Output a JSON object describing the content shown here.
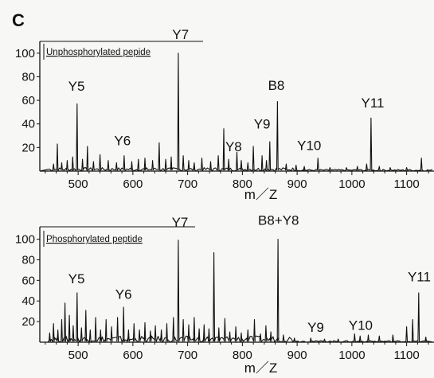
{
  "panel_letter": "C",
  "chart_data": [
    {
      "type": "line",
      "legend": "Unphosphorylated pepide",
      "xlabel": "m／Z",
      "ylabel": "",
      "xlim": [
        430,
        1150
      ],
      "ylim": [
        0,
        110
      ],
      "x_ticks": [
        500,
        600,
        700,
        800,
        900,
        1000,
        1100
      ],
      "y_ticks": [
        20,
        40,
        60,
        80,
        100
      ],
      "grid": false,
      "peaks": [
        {
          "x": 455,
          "y": 6
        },
        {
          "x": 462,
          "y": 23
        },
        {
          "x": 470,
          "y": 7
        },
        {
          "x": 480,
          "y": 9
        },
        {
          "x": 490,
          "y": 12
        },
        {
          "x": 498,
          "y": 57
        },
        {
          "x": 508,
          "y": 10
        },
        {
          "x": 517,
          "y": 21
        },
        {
          "x": 528,
          "y": 8
        },
        {
          "x": 540,
          "y": 14
        },
        {
          "x": 555,
          "y": 9
        },
        {
          "x": 570,
          "y": 7
        },
        {
          "x": 584,
          "y": 13
        },
        {
          "x": 598,
          "y": 8
        },
        {
          "x": 610,
          "y": 10
        },
        {
          "x": 622,
          "y": 11
        },
        {
          "x": 636,
          "y": 9
        },
        {
          "x": 648,
          "y": 24
        },
        {
          "x": 660,
          "y": 10
        },
        {
          "x": 670,
          "y": 12
        },
        {
          "x": 683,
          "y": 100
        },
        {
          "x": 692,
          "y": 13
        },
        {
          "x": 702,
          "y": 9
        },
        {
          "x": 712,
          "y": 7
        },
        {
          "x": 726,
          "y": 11
        },
        {
          "x": 742,
          "y": 8
        },
        {
          "x": 756,
          "y": 13
        },
        {
          "x": 766,
          "y": 36
        },
        {
          "x": 775,
          "y": 10
        },
        {
          "x": 790,
          "y": 16
        },
        {
          "x": 798,
          "y": 9
        },
        {
          "x": 810,
          "y": 7
        },
        {
          "x": 820,
          "y": 21
        },
        {
          "x": 836,
          "y": 13
        },
        {
          "x": 844,
          "y": 9
        },
        {
          "x": 850,
          "y": 25
        },
        {
          "x": 864,
          "y": 59
        },
        {
          "x": 880,
          "y": 6
        },
        {
          "x": 898,
          "y": 5
        },
        {
          "x": 913,
          "y": 4
        },
        {
          "x": 938,
          "y": 11
        },
        {
          "x": 960,
          "y": 3
        },
        {
          "x": 990,
          "y": 3
        },
        {
          "x": 1010,
          "y": 4
        },
        {
          "x": 1027,
          "y": 6
        },
        {
          "x": 1035,
          "y": 45
        },
        {
          "x": 1050,
          "y": 4
        },
        {
          "x": 1070,
          "y": 3
        },
        {
          "x": 1100,
          "y": 3
        },
        {
          "x": 1127,
          "y": 11
        }
      ],
      "annotations": [
        {
          "text": "Y5",
          "x": 497,
          "y": 68
        },
        {
          "text": "Y6",
          "x": 581,
          "y": 22
        },
        {
          "text": "Y7",
          "x": 687,
          "y": 112
        },
        {
          "text": "Y8",
          "x": 784,
          "y": 17
        },
        {
          "text": "Y9",
          "x": 836,
          "y": 36
        },
        {
          "text": "B8",
          "x": 862,
          "y": 69
        },
        {
          "text": "Y10",
          "x": 922,
          "y": 18
        },
        {
          "text": "Y11",
          "x": 1038,
          "y": 54
        }
      ]
    },
    {
      "type": "line",
      "legend": "Phosphorylated  peptide",
      "xlabel": "m／Z",
      "ylabel": "",
      "xlim": [
        430,
        1150
      ],
      "ylim": [
        0,
        112
      ],
      "x_ticks": [
        500,
        600,
        700,
        800,
        900,
        1000,
        1100
      ],
      "y_ticks": [
        20,
        40,
        60,
        80,
        100
      ],
      "grid": false,
      "peaks": [
        {
          "x": 448,
          "y": 9
        },
        {
          "x": 455,
          "y": 18
        },
        {
          "x": 463,
          "y": 12
        },
        {
          "x": 470,
          "y": 22
        },
        {
          "x": 476,
          "y": 38
        },
        {
          "x": 484,
          "y": 26
        },
        {
          "x": 491,
          "y": 16
        },
        {
          "x": 498,
          "y": 48
        },
        {
          "x": 506,
          "y": 14
        },
        {
          "x": 514,
          "y": 31
        },
        {
          "x": 522,
          "y": 12
        },
        {
          "x": 532,
          "y": 24
        },
        {
          "x": 541,
          "y": 12
        },
        {
          "x": 551,
          "y": 22
        },
        {
          "x": 561,
          "y": 15
        },
        {
          "x": 572,
          "y": 24
        },
        {
          "x": 583,
          "y": 34
        },
        {
          "x": 592,
          "y": 12
        },
        {
          "x": 602,
          "y": 18
        },
        {
          "x": 612,
          "y": 12
        },
        {
          "x": 622,
          "y": 19
        },
        {
          "x": 632,
          "y": 11
        },
        {
          "x": 641,
          "y": 16
        },
        {
          "x": 652,
          "y": 12
        },
        {
          "x": 662,
          "y": 18
        },
        {
          "x": 674,
          "y": 24
        },
        {
          "x": 683,
          "y": 99
        },
        {
          "x": 692,
          "y": 22
        },
        {
          "x": 702,
          "y": 17
        },
        {
          "x": 712,
          "y": 24
        },
        {
          "x": 721,
          "y": 13
        },
        {
          "x": 730,
          "y": 17
        },
        {
          "x": 739,
          "y": 13
        },
        {
          "x": 748,
          "y": 87
        },
        {
          "x": 757,
          "y": 14
        },
        {
          "x": 768,
          "y": 23
        },
        {
          "x": 777,
          "y": 10
        },
        {
          "x": 788,
          "y": 15
        },
        {
          "x": 798,
          "y": 9
        },
        {
          "x": 810,
          "y": 12
        },
        {
          "x": 822,
          "y": 22
        },
        {
          "x": 833,
          "y": 8
        },
        {
          "x": 843,
          "y": 16
        },
        {
          "x": 852,
          "y": 10
        },
        {
          "x": 865,
          "y": 100
        },
        {
          "x": 875,
          "y": 7
        },
        {
          "x": 895,
          "y": 4
        },
        {
          "x": 925,
          "y": 4
        },
        {
          "x": 950,
          "y": 3
        },
        {
          "x": 975,
          "y": 3
        },
        {
          "x": 1005,
          "y": 8
        },
        {
          "x": 1015,
          "y": 6
        },
        {
          "x": 1030,
          "y": 7
        },
        {
          "x": 1050,
          "y": 6
        },
        {
          "x": 1075,
          "y": 7
        },
        {
          "x": 1100,
          "y": 15
        },
        {
          "x": 1111,
          "y": 22
        },
        {
          "x": 1122,
          "y": 48
        },
        {
          "x": 1135,
          "y": 5
        }
      ],
      "annotations": [
        {
          "text": "Y5",
          "x": 497,
          "y": 57
        },
        {
          "text": "Y6",
          "x": 583,
          "y": 42
        },
        {
          "text": "Y7",
          "x": 686,
          "y": 112
        },
        {
          "text": "B8+Y8",
          "x": 866,
          "y": 114
        },
        {
          "text": "Y9",
          "x": 934,
          "y": 10
        },
        {
          "text": "Y10",
          "x": 1016,
          "y": 12
        },
        {
          "text": "Y11",
          "x": 1123,
          "y": 59
        }
      ]
    }
  ]
}
